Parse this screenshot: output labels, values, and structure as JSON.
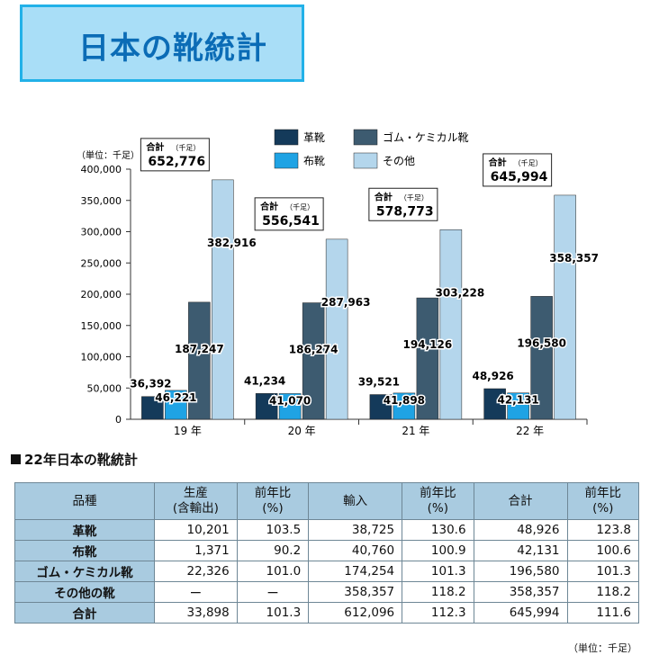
{
  "page": {
    "title": "日本の靴統計",
    "table_title": "22年日本の靴統計",
    "unit_note": "（単位：千足）"
  },
  "chart_data": {
    "type": "bar",
    "unit_label": "（単位：千足）",
    "categories": [
      "19 年",
      "20 年",
      "21 年",
      "22 年"
    ],
    "ylim": [
      0,
      400000
    ],
    "ytick_step": 50000,
    "ytick_labels": [
      "0",
      "50,000",
      "100,000",
      "150,000",
      "200,000",
      "250,000",
      "300,000",
      "350,000",
      "400,000"
    ],
    "grid": false,
    "legend_position": "top",
    "series": [
      {
        "name": "革靴",
        "color": "#143a5a",
        "values": [
          36392,
          41234,
          39521,
          48926
        ],
        "labels": [
          "36,392",
          "41,234",
          "39,521",
          "48,926"
        ]
      },
      {
        "name": "布靴",
        "color": "#1fa3e4",
        "values": [
          46221,
          41070,
          41898,
          42131
        ],
        "labels": [
          "46,221",
          "41,070",
          "41,898",
          "42,131"
        ]
      },
      {
        "name": "ゴム・ケミカル靴",
        "color": "#3d5b70",
        "values": [
          187247,
          186274,
          194126,
          196580
        ],
        "labels": [
          "187,247",
          "186,274",
          "194,126",
          "196,580"
        ]
      },
      {
        "name": "その他",
        "color": "#b4d6ec",
        "values": [
          382916,
          287963,
          303228,
          358357
        ],
        "labels": [
          "382,916",
          "287,963",
          "303,228",
          "358,357"
        ]
      }
    ],
    "totals": {
      "label": "合計",
      "unit": "（千足）",
      "values": [
        652776,
        556541,
        578773,
        645994
      ],
      "labels": [
        "652,776",
        "556,541",
        "578,773",
        "645,994"
      ]
    }
  },
  "table": {
    "headers": [
      "品種",
      "生産\n(含輸出)",
      "前年比\n(%)",
      "輸入",
      "前年比\n(%)",
      "合計",
      "前年比\n(%)"
    ],
    "rows": [
      [
        "革靴",
        "10,201",
        "103.5",
        "38,725",
        "130.6",
        "48,926",
        "123.8"
      ],
      [
        "布靴",
        "1,371",
        "90.2",
        "40,760",
        "100.9",
        "42,131",
        "100.6"
      ],
      [
        "ゴム・ケミカル靴",
        "22,326",
        "101.0",
        "174,254",
        "101.3",
        "196,580",
        "101.3"
      ],
      [
        "その他の靴",
        "ー",
        "ー",
        "358,357",
        "118.2",
        "358,357",
        "118.2"
      ],
      [
        "合計",
        "33,898",
        "101.3",
        "612,096",
        "112.3",
        "645,994",
        "111.6"
      ]
    ]
  }
}
